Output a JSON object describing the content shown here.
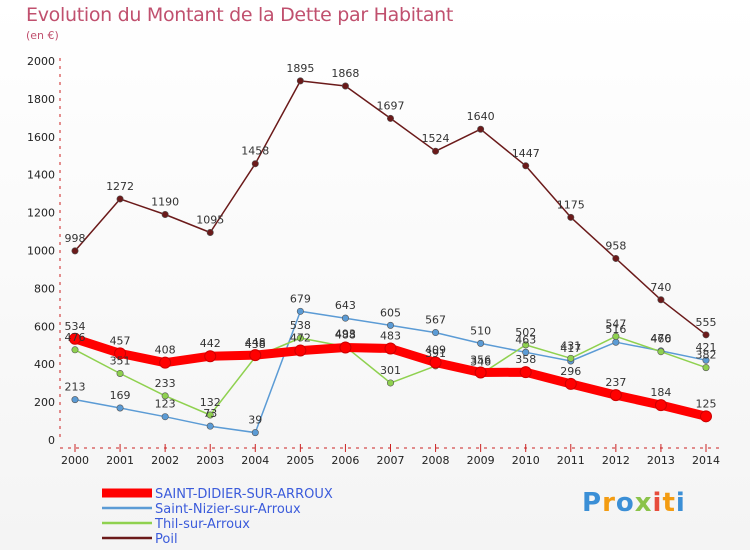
{
  "title": "Evolution du Montant de la Dette par Habitant",
  "subtitle": "(en €)",
  "brand": {
    "text": "Proxiti",
    "colors": [
      "#3b8fd6",
      "#f39c12",
      "#3b8fd6",
      "#8bc34a",
      "#e74c3c",
      "#f39c12",
      "#3b8fd6"
    ]
  },
  "chart_data": {
    "type": "line",
    "x": [
      "2000",
      "2001",
      "2002",
      "2003",
      "2004",
      "2005",
      "2006",
      "2007",
      "2008",
      "2009",
      "2010",
      "2011",
      "2012",
      "2013",
      "2014"
    ],
    "ylim": [
      0,
      2000
    ],
    "yticks": [
      0,
      200,
      400,
      600,
      800,
      1000,
      1200,
      1400,
      1600,
      1800,
      2000
    ],
    "grid": false,
    "legend_position": "bottom-left",
    "series": [
      {
        "name": "SAINT-DIDIER-SUR-ARROUX",
        "color": "#ff0000",
        "thick": true,
        "values": [
          534,
          457,
          408,
          442,
          448,
          472,
          488,
          483,
          409,
          356,
          358,
          296,
          237,
          184,
          125
        ]
      },
      {
        "name": "Saint-Nizier-sur-Arroux",
        "color": "#5b9bd5",
        "thick": false,
        "values": [
          213,
          169,
          123,
          73,
          39,
          679,
          643,
          605,
          567,
          510,
          463,
          417,
          516,
          470,
          421
        ]
      },
      {
        "name": "Thil-sur-Arroux",
        "color": "#8fd14f",
        "thick": false,
        "values": [
          476,
          351,
          233,
          132,
          438,
          538,
          493,
          301,
          391,
          346,
          502,
          431,
          547,
          466,
          382
        ]
      },
      {
        "name": "Poil",
        "color": "#6b1a1a",
        "thick": false,
        "values": [
          998,
          1272,
          1190,
          1095,
          1458,
          1895,
          1868,
          1697,
          1524,
          1640,
          1447,
          1175,
          958,
          740,
          555
        ]
      }
    ]
  }
}
